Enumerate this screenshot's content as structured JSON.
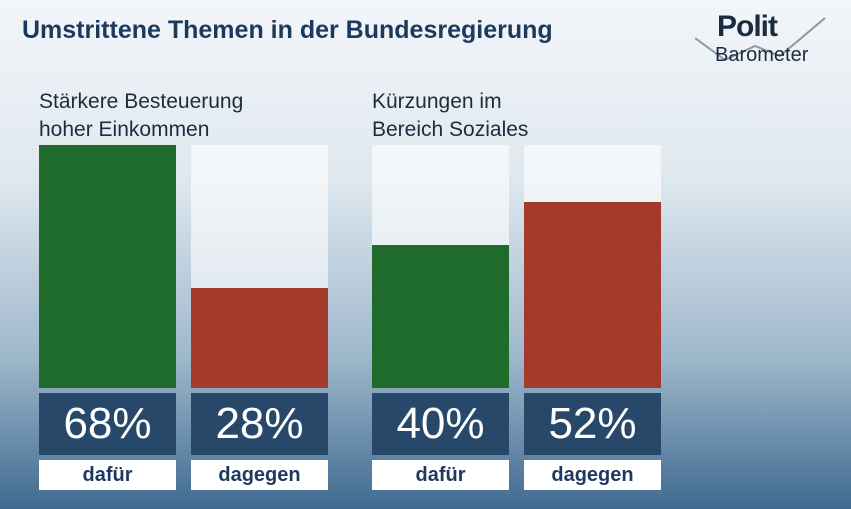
{
  "title": "Umstrittene Themen in der Bundesregierung",
  "logo": {
    "line1": "Polit",
    "line2": "Barometer"
  },
  "chart_data": [
    {
      "type": "bar",
      "title": "Stärkere Besteuerung\nhoher Einkommen",
      "categories": [
        "dafür",
        "dagegen"
      ],
      "values": [
        68,
        28
      ],
      "value_labels": [
        "68%",
        "28%"
      ],
      "colors": [
        "#1e6b2b",
        "#a33a2b"
      ]
    },
    {
      "type": "bar",
      "title": "Kürzungen im\nBereich Soziales",
      "categories": [
        "dafür",
        "dagegen"
      ],
      "values": [
        40,
        52
      ],
      "value_labels": [
        "40%",
        "52%"
      ],
      "colors": [
        "#1e6b2b",
        "#a33a2b"
      ]
    }
  ]
}
